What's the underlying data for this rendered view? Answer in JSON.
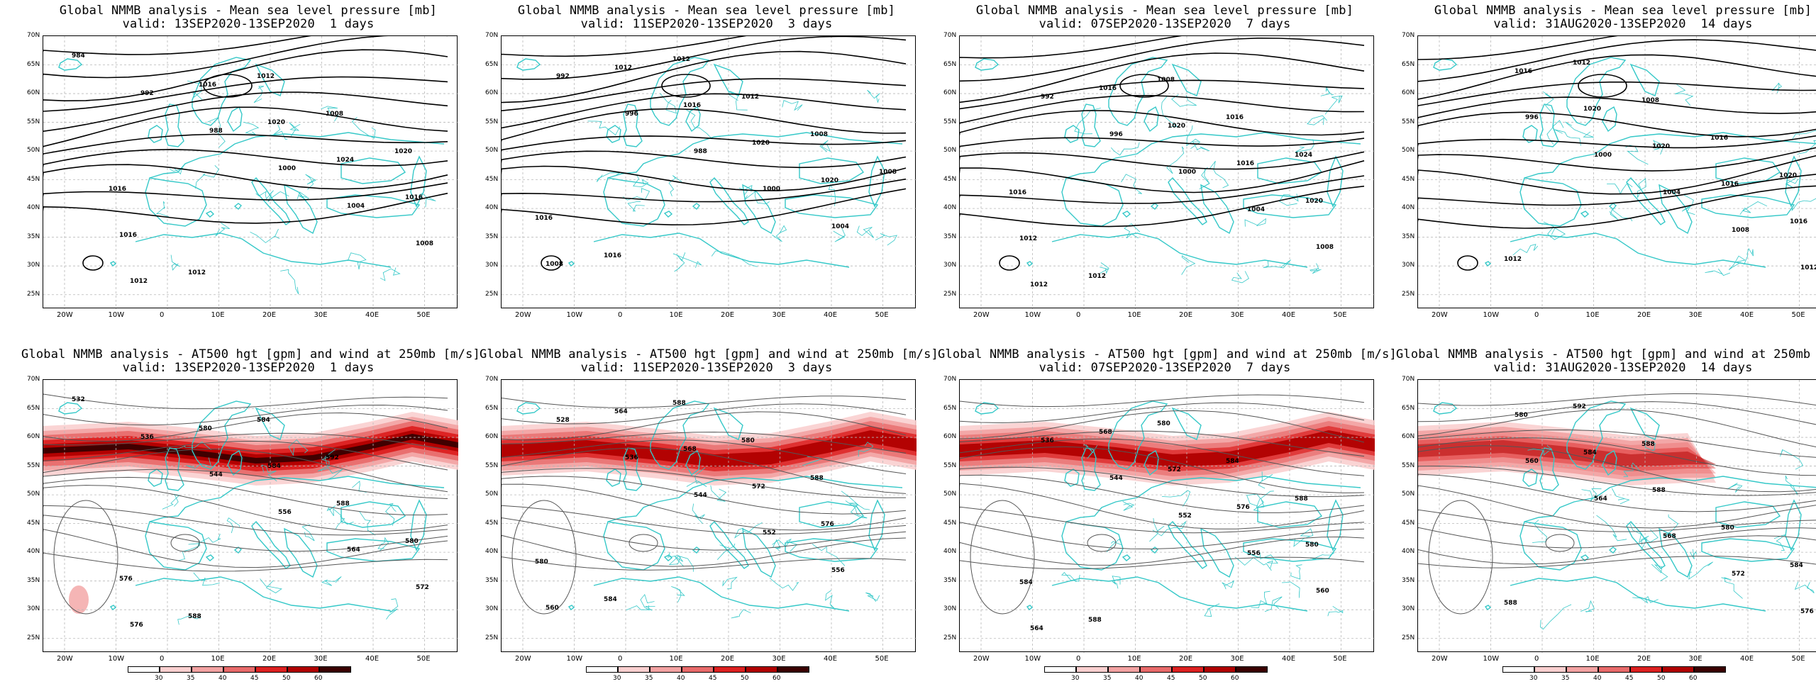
{
  "colors": {
    "coast": "#35c8c8",
    "contour_mslp": "#000000",
    "contour_hgt": "#555555",
    "grid": "#b8b8b8",
    "wind_scale": [
      "#ffffff",
      "#f9cfcf",
      "#f2a2a2",
      "#e86a6a",
      "#dc2020",
      "#b00000",
      "#3a0000"
    ]
  },
  "lat_labels": [
    "70N",
    "65N",
    "60N",
    "55N",
    "50N",
    "45N",
    "40N",
    "35N",
    "30N",
    "25N"
  ],
  "lon_labels": [
    "20W",
    "10W",
    "0",
    "10E",
    "20E",
    "30E",
    "40E",
    "50E"
  ],
  "colorbar_labels": [
    "30",
    "35",
    "40",
    "45",
    "50",
    "60"
  ],
  "panels_top": [
    {
      "title": "Global NMMB analysis - Mean sea level pressure [mb]",
      "valid": "valid: 13SEP2020-13SEP2020  1 days",
      "contour_labels": [
        "984",
        "992",
        "988",
        "1000",
        "1004",
        "1008",
        "1012",
        "1016",
        "1020",
        "1024",
        "1016",
        "1016",
        "1012",
        "1012",
        "1008",
        "1020",
        "1016"
      ]
    },
    {
      "title": "Global NMMB analysis - Mean sea level pressure [mb]",
      "valid": "valid: 11SEP2020-13SEP2020  3 days",
      "contour_labels": [
        "992",
        "996",
        "988",
        "1000",
        "1004",
        "1008",
        "1012",
        "1016",
        "1020",
        "1020",
        "1016",
        "1016",
        "1012",
        "1012",
        "1008",
        "1008"
      ]
    },
    {
      "title": "Global NMMB analysis - Mean sea level pressure [mb]",
      "valid": "valid: 07SEP2020-13SEP2020  7 days",
      "contour_labels": [
        "992",
        "996",
        "1000",
        "1004",
        "1008",
        "1012",
        "1016",
        "1020",
        "1016",
        "1020",
        "1012",
        "1012",
        "1008",
        "1016",
        "1024",
        "1016"
      ]
    },
    {
      "title": "Global NMMB analysis - Mean sea level pressure [mb]",
      "valid": "valid: 31AUG2020-13SEP2020  14 days",
      "contour_labels": [
        "996",
        "1000",
        "1004",
        "1008",
        "1012",
        "1016",
        "1020",
        "1020",
        "1016",
        "1016",
        "1012",
        "1012",
        "1008",
        "1016",
        "1020"
      ]
    }
  ],
  "panels_bottom": [
    {
      "title": "Global NMMB analysis - AT500 hgt [gpm] and wind at 250mb [m/s]",
      "valid": "valid: 13SEP2020-13SEP2020  1 days",
      "contour_labels": [
        "532",
        "536",
        "544",
        "556",
        "564",
        "572",
        "576",
        "580",
        "584",
        "588",
        "580",
        "576",
        "588",
        "584",
        "592"
      ]
    },
    {
      "title": "Global NMMB analysis - AT500 hgt [gpm] and wind at 250mb [m/s]",
      "valid": "valid: 11SEP2020-13SEP2020  3 days",
      "contour_labels": [
        "528",
        "536",
        "544",
        "552",
        "556",
        "560",
        "564",
        "568",
        "572",
        "576",
        "580",
        "584",
        "588",
        "580",
        "588"
      ]
    },
    {
      "title": "Global NMMB analysis - AT500 hgt [gpm] and wind at 250mb [m/s]",
      "valid": "valid: 07SEP2020-13SEP2020  7 days",
      "contour_labels": [
        "536",
        "544",
        "552",
        "556",
        "560",
        "564",
        "568",
        "572",
        "576",
        "580",
        "584",
        "588",
        "580",
        "584",
        "588"
      ]
    },
    {
      "title": "Global NMMB analysis - AT500 hgt [gpm] and wind at 250mb [m/s]",
      "valid": "valid: 31AUG2020-13SEP2020  14 days",
      "contour_labels": [
        "560",
        "564",
        "568",
        "572",
        "576",
        "580",
        "584",
        "588",
        "580",
        "584",
        "588",
        "592",
        "588"
      ]
    }
  ]
}
